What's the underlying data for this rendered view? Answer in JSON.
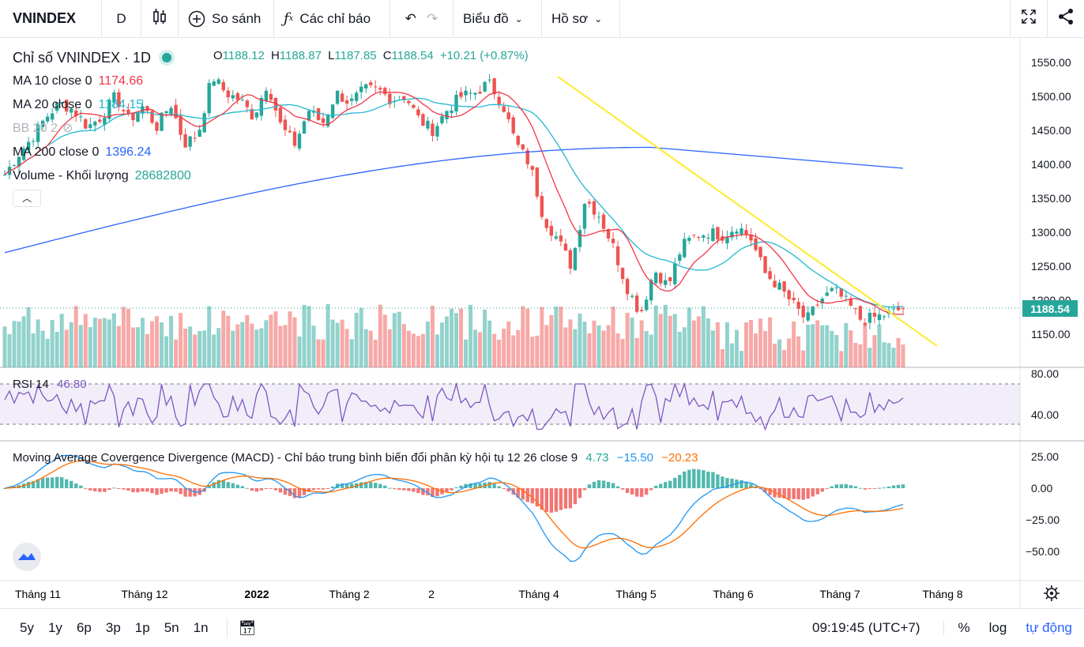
{
  "toolbar": {
    "symbol": "VNINDEX",
    "interval": "D",
    "compare": "So sánh",
    "indicators": "Các chỉ báo",
    "chart_type": "Biểu đồ",
    "profile": "Hồ sơ"
  },
  "legend": {
    "title": "Chỉ số VNINDEX · 1D",
    "open_label": "O",
    "open": "1188.12",
    "high_label": "H",
    "high": "1188.87",
    "low_label": "L",
    "low": "1187.85",
    "close_label": "C",
    "close": "1188.54",
    "change": "+10.21 (+0.87%)",
    "ma10_label": "MA 10 close 0",
    "ma10": "1174.66",
    "ma20_label": "MA 20 close 0",
    "ma20": "1184.15",
    "bb_label": "BB 20 2",
    "ma200_label": "MA 200 close 0",
    "ma200": "1396.24",
    "volume_label": "Volume - Khối lượng",
    "volume": "28682800"
  },
  "price_axis": [
    "1550.00",
    "1500.00",
    "1450.00",
    "1400.00",
    "1350.00",
    "1300.00",
    "1250.00",
    "1200.00",
    "1150.00"
  ],
  "last_price": "1188.54",
  "rsi": {
    "label": "RSI 14",
    "value": "46.80",
    "axis": [
      "80.00",
      "40.00"
    ]
  },
  "macd": {
    "label": "Moving Average Covergence Divergence (MACD) - Chỉ báo trung bình biến đổi phân kỳ hội tụ 12 26 close 9",
    "hist": "4.73",
    "macd": "−15.50",
    "signal": "−20.23",
    "axis": [
      "25.00",
      "0.00",
      "−25.00",
      "−50.00"
    ]
  },
  "time_axis": [
    "Tháng 11",
    "Tháng 12",
    "2022",
    "Tháng 2",
    "2",
    "Tháng 4",
    "Tháng 5",
    "Tháng 6",
    "Tháng 7",
    "Tháng 8"
  ],
  "bottombar": {
    "ranges": [
      "5y",
      "1y",
      "6p",
      "3p",
      "1p",
      "5n",
      "1n"
    ],
    "clock": "09:19:45 (UTC+7)",
    "percent": "%",
    "log": "log",
    "auto": "tự động"
  },
  "colors": {
    "up": "#26a69a",
    "down": "#ef5350",
    "ma10": "#f23645",
    "ma20": "#22b8cf",
    "ma200": "#2962ff",
    "trendline": "#ffeb3b",
    "rsi": "#7e57c2",
    "macd": "#2196f3",
    "signal": "#ff6d00"
  },
  "chart_data": {
    "type": "candlestick",
    "x_range": [
      "Tháng 11",
      "Tháng 8"
    ],
    "y_range": [
      1130,
      1570
    ],
    "price_path": [
      1385,
      1415,
      1440,
      1470,
      1490,
      1480,
      1455,
      1470,
      1500,
      1465,
      1485,
      1455,
      1490,
      1430,
      1445,
      1530,
      1505,
      1495,
      1470,
      1520,
      1455,
      1430,
      1480,
      1460,
      1505,
      1490,
      1510,
      1510,
      1495,
      1500,
      1465,
      1450,
      1480,
      1500,
      1505,
      1520,
      1490,
      1430,
      1400,
      1320,
      1290,
      1250,
      1350,
      1325,
      1280,
      1220,
      1180,
      1245,
      1220,
      1280,
      1295,
      1300,
      1295,
      1310,
      1290,
      1240,
      1220,
      1195,
      1170,
      1200,
      1215,
      1195,
      1170,
      1175,
      1180,
      1188
    ],
    "ma200_range": [
      1270,
      1425
    ],
    "rsi_range": [
      25,
      70
    ],
    "macd_range": [
      -65,
      25
    ]
  }
}
